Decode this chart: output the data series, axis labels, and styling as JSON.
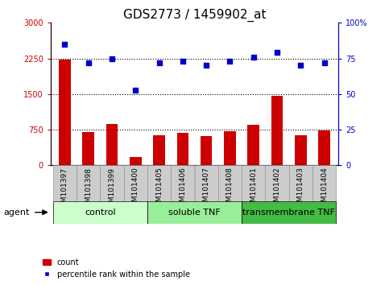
{
  "title": "GDS2773 / 1459902_at",
  "samples": [
    "GSM101397",
    "GSM101398",
    "GSM101399",
    "GSM101400",
    "GSM101405",
    "GSM101406",
    "GSM101407",
    "GSM101408",
    "GSM101401",
    "GSM101402",
    "GSM101403",
    "GSM101404"
  ],
  "counts": [
    2230,
    700,
    870,
    175,
    640,
    680,
    610,
    710,
    850,
    1470,
    640,
    730
  ],
  "percentile": [
    85,
    72,
    75,
    53,
    72,
    73,
    70,
    73,
    76,
    79,
    70,
    72
  ],
  "ylim_left": [
    0,
    3000
  ],
  "ylim_right": [
    0,
    100
  ],
  "yticks_left": [
    0,
    750,
    1500,
    2250,
    3000
  ],
  "yticks_right": [
    0,
    25,
    50,
    75,
    100
  ],
  "ytick_labels_right": [
    "0",
    "25",
    "50",
    "75",
    "100%"
  ],
  "groups": [
    {
      "label": "control",
      "start": 0,
      "end": 4,
      "color": "#ccffcc"
    },
    {
      "label": "soluble TNF",
      "start": 4,
      "end": 8,
      "color": "#99ee99"
    },
    {
      "label": "transmembrane TNF",
      "start": 8,
      "end": 12,
      "color": "#44bb44"
    }
  ],
  "bar_color": "#cc0000",
  "scatter_color": "#0000cc",
  "bar_width": 0.5,
  "hline_color": "#000000",
  "hline_values": [
    750,
    1500,
    2250
  ],
  "tick_color_left": "#cc0000",
  "tick_color_right": "#0000cc",
  "title_fontsize": 11,
  "sample_fontsize": 6.5,
  "group_fontsize": 8,
  "legend_fontsize": 7,
  "agent_fontsize": 8,
  "xtick_box_color": "#cccccc"
}
